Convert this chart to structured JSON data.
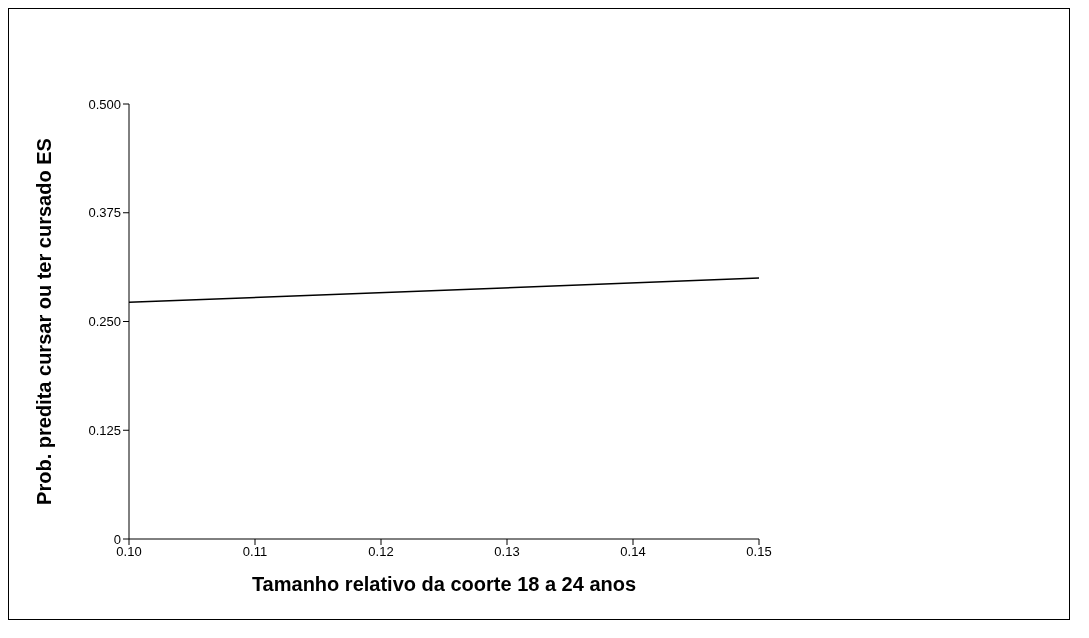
{
  "chart_data": {
    "type": "line",
    "xlabel": "Tamanho relativo da coorte 18 a 24 anos",
    "ylabel": "Prob. predita cursar ou ter cursado ES",
    "x": [
      0.1,
      0.15
    ],
    "series": [
      {
        "color": "#000000",
        "values": [
          0.272,
          0.3
        ]
      }
    ],
    "xlim": [
      0.1,
      0.15
    ],
    "xticks": [
      {
        "value": 0.1,
        "label": "0.10"
      },
      {
        "value": 0.11,
        "label": "0.11"
      },
      {
        "value": 0.12,
        "label": "0.12"
      },
      {
        "value": 0.13,
        "label": "0.13"
      },
      {
        "value": 0.14,
        "label": "0.14"
      },
      {
        "value": 0.15,
        "label": "0.15"
      }
    ],
    "ylim": [
      0,
      0.5
    ],
    "yticks": [
      0,
      {
        "value": 0.125,
        "label": "0.125"
      },
      {
        "value": 0.25,
        "label": "0.250"
      },
      {
        "value": 0.375,
        "label": "0.375"
      },
      {
        "value": 0.5,
        "label": "0.500"
      }
    ],
    "grid": false,
    "legend": false,
    "marker": "none",
    "line_style": "solid"
  }
}
